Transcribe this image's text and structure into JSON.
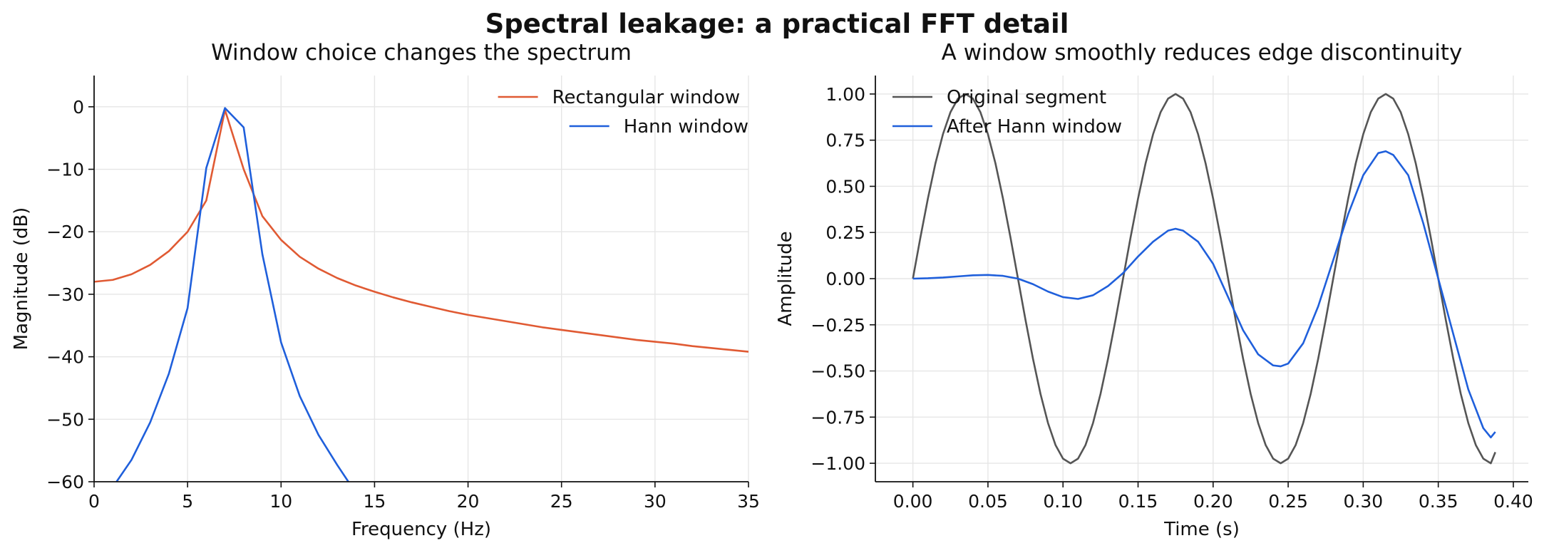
{
  "figure": {
    "suptitle": "Spectral leakage: a practical FFT detail"
  },
  "chart_data": [
    {
      "type": "line",
      "title": "Window choice changes the spectrum",
      "xlabel": "Frequency (Hz)",
      "ylabel": "Magnitude (dB)",
      "xlim": [
        0,
        35
      ],
      "ylim": [
        -60,
        5
      ],
      "xticks": [
        0,
        5,
        10,
        15,
        20,
        25,
        30,
        35
      ],
      "xtick_labels": [
        "0",
        "5",
        "10",
        "15",
        "20",
        "25",
        "30",
        "35"
      ],
      "yticks": [
        0,
        -10,
        -20,
        -30,
        -40,
        -50,
        -60
      ],
      "ytick_labels": [
        "0",
        "−10",
        "−20",
        "−30",
        "−40",
        "−50",
        "−60"
      ],
      "grid": true,
      "legend_position": "upper right",
      "series": [
        {
          "name": "Rectangular window",
          "color": "#e05a33",
          "x": [
            0,
            1,
            2,
            3,
            4,
            5,
            6,
            7,
            8,
            9,
            10,
            11,
            12,
            13,
            14,
            15,
            16,
            17,
            18,
            19,
            20,
            21,
            22,
            23,
            24,
            25,
            26,
            27,
            28,
            29,
            30,
            31,
            32,
            33,
            34,
            35
          ],
          "y": [
            -28,
            -27.7,
            -26.8,
            -25.3,
            -23.1,
            -20,
            -15,
            -0.5,
            -10,
            -17.5,
            -21.3,
            -24,
            -25.9,
            -27.4,
            -28.6,
            -29.6,
            -30.5,
            -31.3,
            -32,
            -32.7,
            -33.3,
            -33.8,
            -34.3,
            -34.8,
            -35.3,
            -35.7,
            -36.1,
            -36.5,
            -36.9,
            -37.3,
            -37.6,
            -37.9,
            -38.3,
            -38.6,
            -38.9,
            -39.2
          ]
        },
        {
          "name": "Hann window",
          "color": "#1f5fdb",
          "x": [
            1.2,
            2,
            3,
            4,
            5,
            6,
            7,
            8,
            9,
            10,
            11,
            12,
            13,
            13.6
          ],
          "y": [
            -60,
            -56.5,
            -50.5,
            -42.7,
            -32.2,
            -9.8,
            -0.2,
            -3.3,
            -23.6,
            -37.7,
            -46.3,
            -52.5,
            -57.3,
            -60
          ]
        }
      ]
    },
    {
      "type": "line",
      "title": "A window smoothly reduces edge discontinuity",
      "xlabel": "Time (s)",
      "ylabel": "Amplitude",
      "xlim": [
        -0.025,
        0.41
      ],
      "ylim": [
        -1.1,
        1.1
      ],
      "xticks": [
        0,
        0.05,
        0.1,
        0.15,
        0.2,
        0.25,
        0.3,
        0.35,
        0.4
      ],
      "xtick_labels": [
        "0.00",
        "0.05",
        "0.10",
        "0.15",
        "0.20",
        "0.25",
        "0.30",
        "0.35",
        "0.40"
      ],
      "yticks": [
        1,
        0.75,
        0.5,
        0.25,
        0,
        -0.25,
        -0.5,
        -0.75,
        -1
      ],
      "ytick_labels": [
        "1.00",
        "0.75",
        "0.50",
        "0.25",
        "0.00",
        "−0.25",
        "−0.50",
        "−0.75",
        "−1.00"
      ],
      "grid": true,
      "legend_position": "upper left",
      "series": [
        {
          "name": "Original segment",
          "color": "#555555",
          "x": [
            0,
            0.005,
            0.01,
            0.015,
            0.02,
            0.025,
            0.03,
            0.035,
            0.04,
            0.045,
            0.05,
            0.055,
            0.06,
            0.065,
            0.07,
            0.075,
            0.08,
            0.085,
            0.09,
            0.095,
            0.1,
            0.105,
            0.11,
            0.115,
            0.12,
            0.125,
            0.13,
            0.135,
            0.14,
            0.145,
            0.15,
            0.155,
            0.16,
            0.165,
            0.17,
            0.175,
            0.18,
            0.185,
            0.19,
            0.195,
            0.2,
            0.205,
            0.21,
            0.215,
            0.22,
            0.225,
            0.23,
            0.235,
            0.24,
            0.245,
            0.25,
            0.255,
            0.26,
            0.265,
            0.27,
            0.275,
            0.28,
            0.285,
            0.29,
            0.295,
            0.3,
            0.305,
            0.31,
            0.315,
            0.32,
            0.325,
            0.33,
            0.335,
            0.34,
            0.345,
            0.35,
            0.355,
            0.36,
            0.365,
            0.37,
            0.375,
            0.38,
            0.385,
            0.388
          ],
          "y": [
            0,
            0.223,
            0.434,
            0.624,
            0.782,
            0.901,
            0.975,
            1,
            0.975,
            0.901,
            0.782,
            0.624,
            0.434,
            0.223,
            0,
            -0.223,
            -0.434,
            -0.624,
            -0.782,
            -0.901,
            -0.975,
            -1,
            -0.975,
            -0.901,
            -0.782,
            -0.624,
            -0.434,
            -0.223,
            0,
            0.223,
            0.434,
            0.624,
            0.782,
            0.901,
            0.975,
            1,
            0.975,
            0.901,
            0.782,
            0.624,
            0.434,
            0.223,
            0,
            -0.223,
            -0.434,
            -0.624,
            -0.782,
            -0.901,
            -0.975,
            -1,
            -0.975,
            -0.901,
            -0.782,
            -0.624,
            -0.434,
            -0.223,
            0,
            0.223,
            0.434,
            0.624,
            0.782,
            0.901,
            0.975,
            1,
            0.975,
            0.901,
            0.782,
            0.624,
            0.434,
            0.223,
            0,
            -0.223,
            -0.434,
            -0.624,
            -0.782,
            -0.901,
            -0.975,
            -1,
            -0.94
          ]
        },
        {
          "name": "After Hann window",
          "color": "#1f5fdb",
          "x": [
            0,
            0.01,
            0.02,
            0.03,
            0.04,
            0.05,
            0.06,
            0.07,
            0.08,
            0.09,
            0.1,
            0.11,
            0.12,
            0.13,
            0.14,
            0.15,
            0.16,
            0.17,
            0.175,
            0.18,
            0.19,
            0.2,
            0.21,
            0.22,
            0.23,
            0.24,
            0.245,
            0.25,
            0.26,
            0.27,
            0.28,
            0.29,
            0.3,
            0.31,
            0.315,
            0.32,
            0.33,
            0.34,
            0.35,
            0.36,
            0.37,
            0.38,
            0.385,
            0.388
          ],
          "y": [
            0,
            0.002,
            0.006,
            0.012,
            0.018,
            0.02,
            0.015,
            0,
            -0.03,
            -0.07,
            -0.1,
            -0.11,
            -0.09,
            -0.04,
            0.03,
            0.12,
            0.2,
            0.26,
            0.27,
            0.26,
            0.2,
            0.08,
            -0.1,
            -0.28,
            -0.41,
            -0.47,
            -0.475,
            -0.46,
            -0.35,
            -0.15,
            0.1,
            0.35,
            0.56,
            0.68,
            0.69,
            0.67,
            0.56,
            0.3,
            0,
            -0.3,
            -0.6,
            -0.81,
            -0.86,
            -0.83
          ]
        }
      ]
    }
  ]
}
